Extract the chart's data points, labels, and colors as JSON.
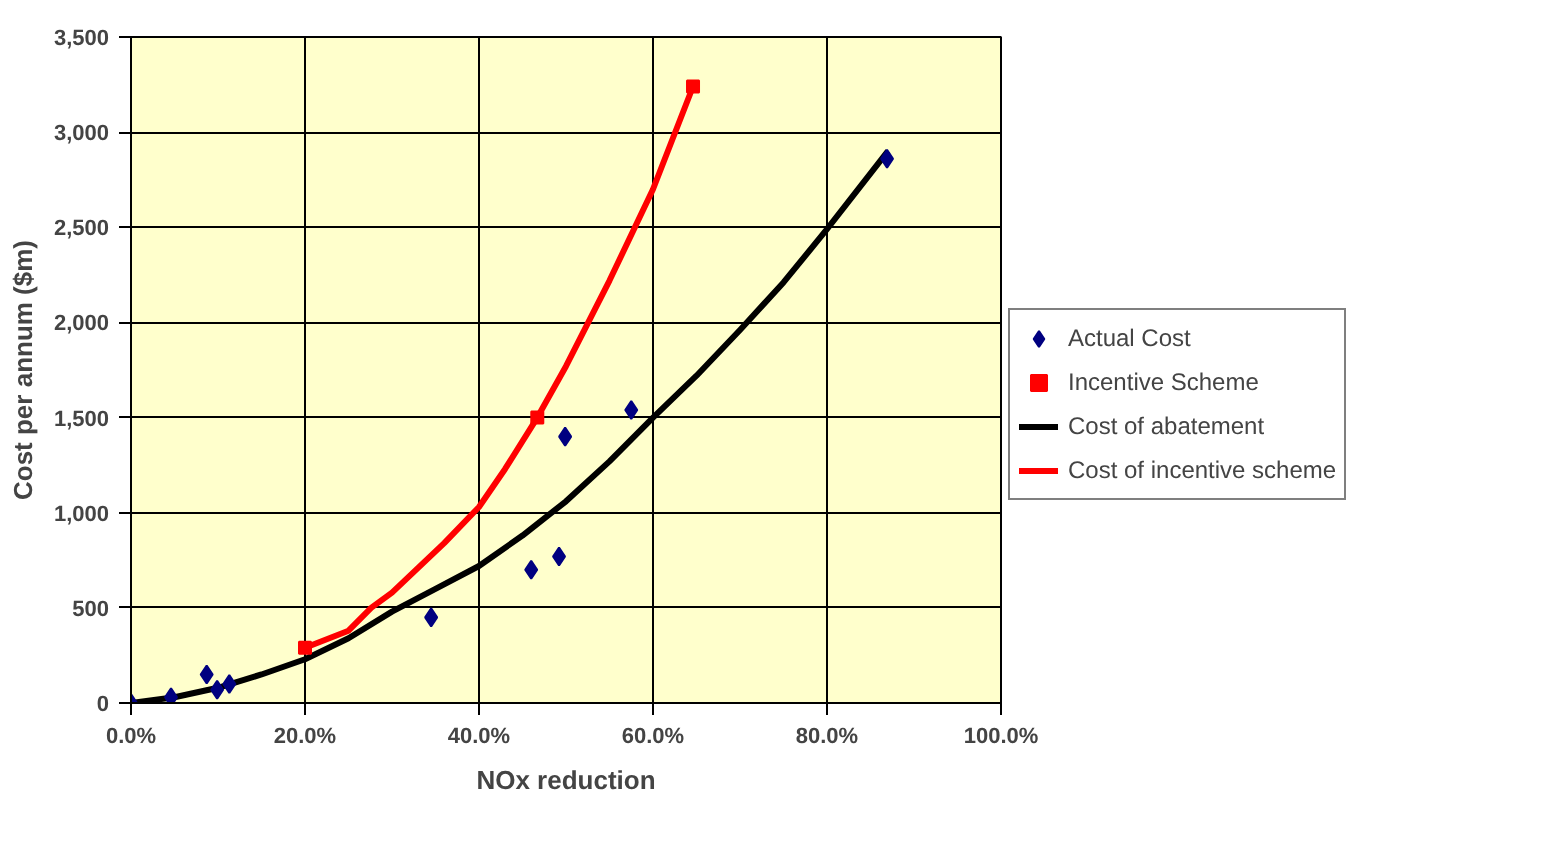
{
  "chart_data": {
    "type": "scatter",
    "xlabel": "NOx reduction",
    "ylabel": "Cost per annum ($m)",
    "xlim": [
      0,
      100
    ],
    "ylim": [
      0,
      3500
    ],
    "xticks": [
      {
        "value": 0,
        "label": "0.0%"
      },
      {
        "value": 20,
        "label": "20.0%"
      },
      {
        "value": 40,
        "label": "40.0%"
      },
      {
        "value": 60,
        "label": "60.0%"
      },
      {
        "value": 80,
        "label": "80.0%"
      },
      {
        "value": 100,
        "label": "100.0%"
      }
    ],
    "yticks": [
      {
        "value": 0,
        "label": "0"
      },
      {
        "value": 500,
        "label": "500"
      },
      {
        "value": 1000,
        "label": "1,000"
      },
      {
        "value": 1500,
        "label": "1,500"
      },
      {
        "value": 2000,
        "label": "2,000"
      },
      {
        "value": 2500,
        "label": "2,500"
      },
      {
        "value": 3000,
        "label": "3,000"
      },
      {
        "value": 3500,
        "label": "3,500"
      }
    ],
    "grid": true,
    "legend": "right",
    "series": [
      {
        "name": "Actual Cost",
        "marker": "diamond",
        "color": "#000080",
        "x": [
          0,
          4.6,
          8.7,
          9.9,
          11.3,
          34.5,
          46,
          49.2,
          49.9,
          57.5,
          86.9
        ],
        "values": [
          0,
          30,
          150,
          70,
          100,
          450,
          700,
          770,
          1400,
          1540,
          2860
        ]
      },
      {
        "name": "Incentive Scheme",
        "marker": "square",
        "color": "#ff0000",
        "x": [
          20,
          46.7,
          64.6
        ],
        "values": [
          290,
          1500,
          3240
        ]
      },
      {
        "name": "Cost of abatement",
        "type": "line",
        "marker": "none",
        "color": "#000000",
        "x": [
          0,
          5,
          10,
          15,
          20,
          25,
          30,
          35,
          40,
          45,
          50,
          55,
          60,
          65,
          70,
          75,
          80,
          87
        ],
        "values": [
          0,
          30,
          80,
          150,
          230,
          340,
          480,
          600,
          720,
          880,
          1060,
          1270,
          1500,
          1720,
          1960,
          2210,
          2490,
          2900
        ]
      },
      {
        "name": "Cost of incentive scheme",
        "type": "line",
        "marker": "none",
        "color": "#ff0000",
        "x": [
          20,
          25,
          27.6,
          30,
          33,
          36,
          40,
          43,
          46.7,
          50,
          55,
          60,
          64.6
        ],
        "values": [
          290,
          380,
          500,
          580,
          710,
          840,
          1030,
          1230,
          1500,
          1770,
          2220,
          2700,
          3240
        ]
      }
    ]
  }
}
